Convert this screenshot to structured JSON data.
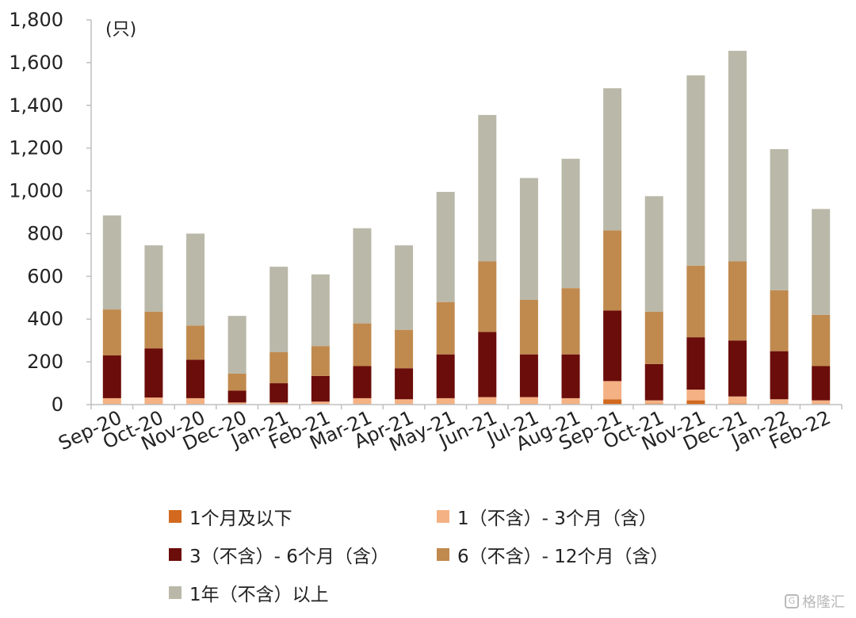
{
  "chart_data": {
    "type": "bar",
    "stacked": true,
    "unit": "(只)",
    "categories": [
      "Sep-20",
      "Oct-20",
      "Nov-20",
      "Dec-20",
      "Jan-21",
      "Feb-21",
      "Mar-21",
      "Apr-21",
      "May-21",
      "Jun-21",
      "Jul-21",
      "Aug-21",
      "Sep-21",
      "Oct-21",
      "Nov-21",
      "Dec-21",
      "Jan-22",
      "Feb-22"
    ],
    "ylim": [
      0,
      1800
    ],
    "yticks": [
      "0",
      "200",
      "400",
      "600",
      "800",
      "1,000",
      "1,200",
      "1,400",
      "1,600",
      "1,800"
    ],
    "grid": false,
    "legend_position": "bottom",
    "series": [
      {
        "name": "1个月及以下",
        "color": "#d2691e",
        "values": [
          3,
          3,
          3,
          2,
          2,
          2,
          3,
          3,
          3,
          3,
          3,
          3,
          25,
          5,
          20,
          5,
          3,
          3
        ]
      },
      {
        "name": "1（不含）- 3个月（含）",
        "color": "#f4b183",
        "values": [
          27,
          30,
          27,
          8,
          8,
          12,
          27,
          22,
          27,
          32,
          32,
          27,
          85,
          15,
          50,
          33,
          22,
          17
        ]
      },
      {
        "name": "3（不含）- 6个月（含）",
        "color": "#6b0d0a",
        "values": [
          200,
          230,
          180,
          55,
          90,
          120,
          150,
          145,
          205,
          305,
          200,
          205,
          330,
          170,
          245,
          262,
          225,
          160
        ]
      },
      {
        "name": "6（不含）- 12个月（含）",
        "color": "#c08a4e",
        "values": [
          215,
          172,
          160,
          80,
          145,
          140,
          200,
          180,
          245,
          330,
          255,
          310,
          375,
          245,
          335,
          370,
          285,
          240
        ]
      },
      {
        "name": "1年（不含）以上",
        "color": "#bab8a8",
        "values": [
          440,
          310,
          430,
          270,
          400,
          335,
          445,
          395,
          515,
          685,
          570,
          605,
          665,
          540,
          890,
          985,
          660,
          495
        ]
      }
    ]
  },
  "watermark": "格隆汇"
}
